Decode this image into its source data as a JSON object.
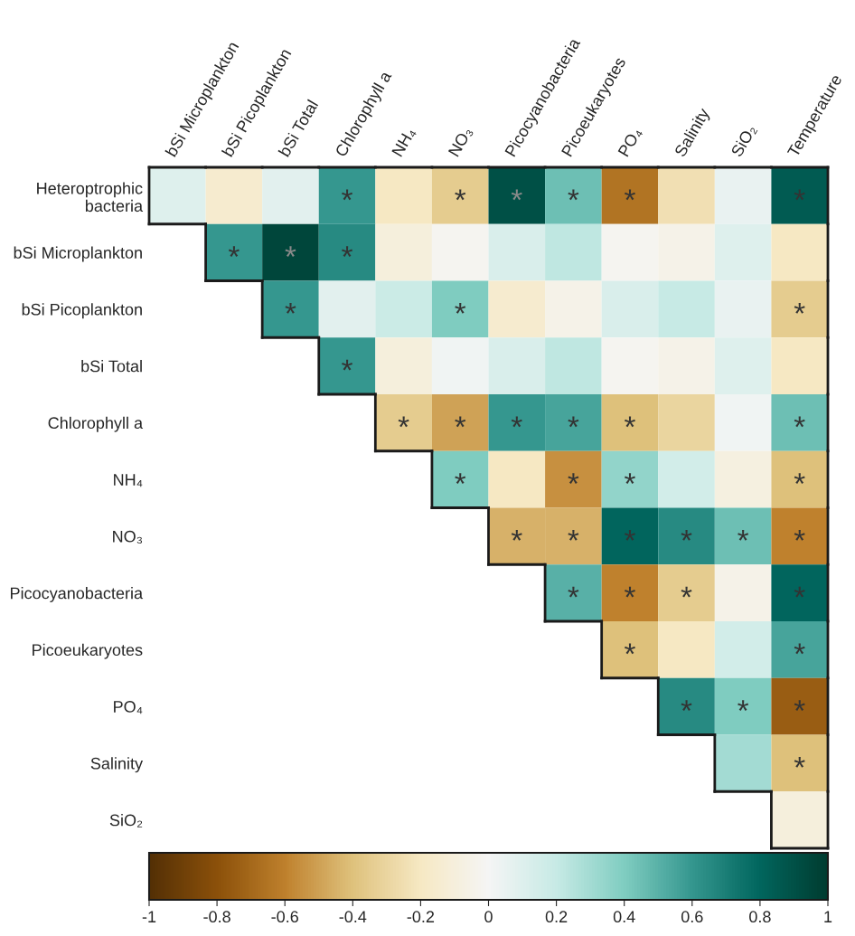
{
  "chart_data": {
    "type": "heatmap",
    "categories": [
      "bSi Microplankton",
      "bSi Picoplankton",
      "bSi Total",
      "Chlorophyll a",
      "NH₄",
      "NO₃",
      "Picocyanobacteria",
      "Picoeukaryotes",
      "PO₄",
      "Salinity",
      "SiO₂",
      "Temperature"
    ],
    "y_categories": [
      "Heteroptrophic\nbacteria",
      "bSi Microplankton",
      "bSi Picoplankton",
      "bSi Total",
      "Chlorophyll a",
      "NH₄",
      "NO₃",
      "Picocyanobacteria",
      "Picoeukaryotes",
      "PO₄",
      "Salinity",
      "SiO₂"
    ],
    "cells": [
      [
        0.1,
        -0.15,
        0.08,
        0.6,
        -0.2,
        -0.35,
        0.9,
        0.45,
        -0.65,
        -0.25,
        0.05,
        0.85
      ],
      [
        null,
        0.6,
        0.95,
        0.65,
        -0.1,
        -0.02,
        0.12,
        0.22,
        -0.02,
        -0.05,
        0.1,
        -0.2
      ],
      [
        null,
        null,
        0.6,
        0.08,
        0.18,
        0.4,
        -0.15,
        -0.05,
        0.12,
        0.2,
        0.05,
        -0.35
      ],
      [
        null,
        null,
        null,
        0.6,
        -0.1,
        0.02,
        0.12,
        0.22,
        -0.02,
        -0.05,
        0.1,
        -0.2
      ],
      [
        null,
        null,
        null,
        null,
        -0.35,
        -0.5,
        0.6,
        0.55,
        -0.4,
        -0.3,
        0.02,
        0.45
      ],
      [
        null,
        null,
        null,
        null,
        null,
        0.4,
        -0.2,
        -0.55,
        0.35,
        0.15,
        -0.08,
        -0.4
      ],
      [
        null,
        null,
        null,
        null,
        null,
        null,
        -0.45,
        -0.45,
        0.8,
        0.65,
        0.45,
        -0.6
      ],
      [
        null,
        null,
        null,
        null,
        null,
        null,
        null,
        0.5,
        -0.6,
        -0.35,
        -0.05,
        0.8
      ],
      [
        null,
        null,
        null,
        null,
        null,
        null,
        null,
        null,
        -0.4,
        -0.2,
        0.15,
        0.55
      ],
      [
        null,
        null,
        null,
        null,
        null,
        null,
        null,
        null,
        null,
        0.65,
        0.4,
        -0.75
      ],
      [
        null,
        null,
        null,
        null,
        null,
        null,
        null,
        null,
        null,
        null,
        0.3,
        -0.4
      ],
      [
        null,
        null,
        null,
        null,
        null,
        null,
        null,
        null,
        null,
        null,
        null,
        -0.1
      ]
    ],
    "cell_labels": [
      [
        null,
        null,
        null,
        "*",
        null,
        "*",
        "*",
        "*",
        "*",
        null,
        null,
        "*"
      ],
      [
        null,
        "*",
        "*",
        "*",
        null,
        null,
        null,
        null,
        null,
        null,
        null,
        null
      ],
      [
        null,
        null,
        "*",
        null,
        null,
        "*",
        null,
        null,
        null,
        null,
        null,
        "*"
      ],
      [
        null,
        null,
        null,
        "*",
        null,
        null,
        null,
        null,
        null,
        null,
        null,
        null
      ],
      [
        null,
        null,
        null,
        null,
        "*",
        "*",
        "*",
        "*",
        "*",
        null,
        null,
        "*"
      ],
      [
        null,
        null,
        null,
        null,
        null,
        "*",
        null,
        "*",
        "*",
        null,
        null,
        "*"
      ],
      [
        null,
        null,
        null,
        null,
        null,
        null,
        "*",
        "*",
        "*",
        "*",
        "*",
        "*"
      ],
      [
        null,
        null,
        null,
        null,
        null,
        null,
        null,
        "*",
        "*",
        "*",
        null,
        "*"
      ],
      [
        null,
        null,
        null,
        null,
        null,
        null,
        null,
        null,
        "*",
        null,
        null,
        "*"
      ],
      [
        null,
        null,
        null,
        null,
        null,
        null,
        null,
        null,
        null,
        "*",
        "*",
        "*"
      ],
      [
        null,
        null,
        null,
        null,
        null,
        null,
        null,
        null,
        null,
        null,
        null,
        "*"
      ],
      [
        null,
        null,
        null,
        null,
        null,
        null,
        null,
        null,
        null,
        null,
        null,
        null
      ]
    ],
    "clim": [
      -1,
      1
    ],
    "cticks": [
      -1,
      -0.8,
      -0.6,
      -0.4,
      -0.2,
      0,
      0.2,
      0.4,
      0.6,
      0.8,
      1
    ]
  }
}
